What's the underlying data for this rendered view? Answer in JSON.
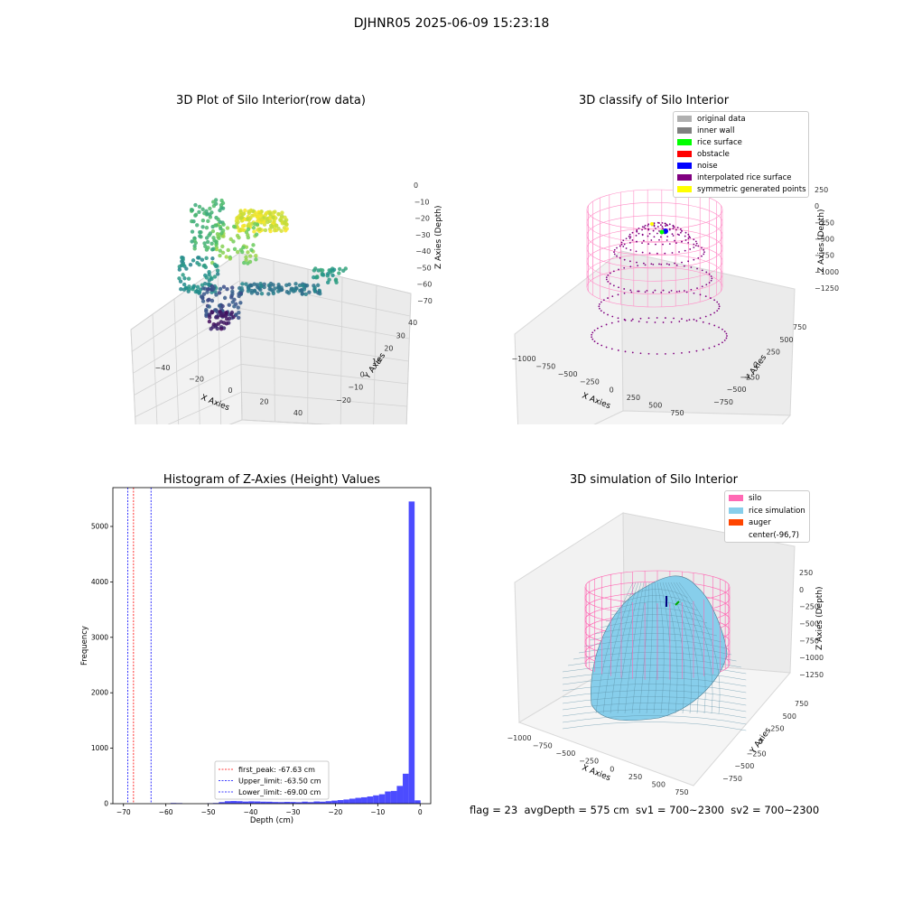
{
  "suptitle": "DJHNR05 2025-06-09 15:23:18",
  "footer_text": "flag = 23  avgDepth = 575 cm  sv1 = 700~2300  sv2 = 700~2300",
  "panels": {
    "raw": {
      "title": "3D Plot of Silo Interior(row data)",
      "xlabel": "X Axies",
      "ylabel": "Y Axies",
      "zlabel": "Z Axies (Depth)",
      "xticks": [
        "−40",
        "−20",
        "0",
        "20",
        "40"
      ],
      "yticks": [
        "−20",
        "−10",
        "0",
        "10",
        "20",
        "30",
        "40"
      ],
      "zticks": [
        "0",
        "−10",
        "−20",
        "−30",
        "−40",
        "−50",
        "−60",
        "−70"
      ]
    },
    "classify": {
      "title": "3D classify of Silo Interior",
      "xlabel": "X Axies",
      "ylabel": "Y Axies",
      "zlabel": "Z Axies (Depth)",
      "xticks": [
        "−1000",
        "−750",
        "−500",
        "−250",
        "0",
        "250",
        "500",
        "750"
      ],
      "yticks": [
        "−750",
        "−500",
        "−250",
        "0",
        "250",
        "500",
        "750"
      ],
      "zticks": [
        "250",
        "0",
        "−250",
        "−500",
        "−750",
        "−1000",
        "−1250"
      ],
      "legend": [
        {
          "label": "original data",
          "color": "#b0b0b0"
        },
        {
          "label": "inner wall",
          "color": "#808080"
        },
        {
          "label": "rice surface",
          "color": "#00ff00"
        },
        {
          "label": "obstacle",
          "color": "#ff0000"
        },
        {
          "label": "noise",
          "color": "#0000ff"
        },
        {
          "label": "interpolated rice surface",
          "color": "#800080"
        },
        {
          "label": "symmetric generated points",
          "color": "#ffff00"
        }
      ]
    },
    "simulation": {
      "title": "3D simulation of Silo Interior",
      "xlabel": "X Axies",
      "ylabel": "Y Axies",
      "zlabel": "Z Axies (Depth)",
      "xticks": [
        "−1000",
        "−750",
        "−500",
        "−250",
        "0",
        "250",
        "500",
        "750"
      ],
      "yticks": [
        "−750",
        "−500",
        "−250",
        "0",
        "250",
        "500",
        "750"
      ],
      "zticks": [
        "250",
        "0",
        "−250",
        "−500",
        "−750",
        "−1000",
        "−1250"
      ],
      "legend": [
        {
          "label": "silo",
          "color": "#ff69b4"
        },
        {
          "label": "rice simulation",
          "color": "#87ceeb"
        },
        {
          "label": "auger",
          "color": "#ff4500"
        },
        {
          "label": "center(-96,7)",
          "color": "#ffffff"
        }
      ]
    }
  },
  "chart_data": [
    {
      "type": "scatter",
      "title": "3D Plot of Silo Interior(row data)",
      "note_points": "3D point cloud; depth values roughly between -70 and -10",
      "zlim": [
        -72,
        5
      ]
    },
    {
      "type": "scatter",
      "title": "3D classify of Silo Interior"
    },
    {
      "type": "bar",
      "title": "Histogram of Z-Axies (Height) Values",
      "xlabel": "Depth (cm)",
      "ylabel": "Frequency",
      "xlim": [
        -72.5,
        2.5
      ],
      "ylim": [
        0,
        5700
      ],
      "xticks": [
        -70,
        -60,
        -50,
        -40,
        -30,
        -20,
        -10,
        0
      ],
      "yticks": [
        0,
        1000,
        2000,
        3000,
        4000,
        5000
      ],
      "bins": [
        {
          "x0": -58.9,
          "x1": -57.5,
          "count": 12
        },
        {
          "x0": -57.5,
          "x1": -56.1,
          "count": 10
        },
        {
          "x0": -50.3,
          "x1": -48.9,
          "count": 8
        },
        {
          "x0": -48.9,
          "x1": -47.5,
          "count": 12
        },
        {
          "x0": -47.5,
          "x1": -46.1,
          "count": 28
        },
        {
          "x0": -46.1,
          "x1": -44.7,
          "count": 45
        },
        {
          "x0": -44.7,
          "x1": -43.3,
          "count": 48
        },
        {
          "x0": -43.3,
          "x1": -41.9,
          "count": 45
        },
        {
          "x0": -41.9,
          "x1": -40.5,
          "count": 38
        },
        {
          "x0": -40.5,
          "x1": -39.1,
          "count": 42
        },
        {
          "x0": -39.1,
          "x1": -37.7,
          "count": 40
        },
        {
          "x0": -37.7,
          "x1": -36.3,
          "count": 36
        },
        {
          "x0": -36.3,
          "x1": -34.9,
          "count": 35
        },
        {
          "x0": -34.9,
          "x1": -33.5,
          "count": 30
        },
        {
          "x0": -33.5,
          "x1": -32.1,
          "count": 28
        },
        {
          "x0": -32.1,
          "x1": -30.7,
          "count": 32
        },
        {
          "x0": -30.7,
          "x1": -29.3,
          "count": 30
        },
        {
          "x0": -29.3,
          "x1": -27.9,
          "count": 26
        },
        {
          "x0": -27.9,
          "x1": -26.5,
          "count": 36
        },
        {
          "x0": -26.5,
          "x1": -25.1,
          "count": 28
        },
        {
          "x0": -25.1,
          "x1": -23.7,
          "count": 40
        },
        {
          "x0": -23.7,
          "x1": -22.3,
          "count": 36
        },
        {
          "x0": -22.3,
          "x1": -20.9,
          "count": 45
        },
        {
          "x0": -20.9,
          "x1": -19.5,
          "count": 55
        },
        {
          "x0": -19.5,
          "x1": -18.1,
          "count": 65
        },
        {
          "x0": -18.1,
          "x1": -16.7,
          "count": 75
        },
        {
          "x0": -16.7,
          "x1": -15.3,
          "count": 90
        },
        {
          "x0": -15.3,
          "x1": -13.9,
          "count": 105
        },
        {
          "x0": -13.9,
          "x1": -12.5,
          "count": 115
        },
        {
          "x0": -12.5,
          "x1": -11.1,
          "count": 130
        },
        {
          "x0": -11.1,
          "x1": -9.7,
          "count": 150
        },
        {
          "x0": -9.7,
          "x1": -8.3,
          "count": 170
        },
        {
          "x0": -8.3,
          "x1": -6.9,
          "count": 220
        },
        {
          "x0": -6.9,
          "x1": -5.5,
          "count": 230
        },
        {
          "x0": -5.5,
          "x1": -4.1,
          "count": 320
        },
        {
          "x0": -4.1,
          "x1": -2.7,
          "count": 540
        },
        {
          "x0": -2.7,
          "x1": -1.3,
          "count": 5450
        },
        {
          "x0": -1.3,
          "x1": 0.1,
          "count": 60
        }
      ],
      "vlines": [
        {
          "name": "first_peak: -67.63 cm",
          "x": -67.63,
          "color": "#ff0000"
        },
        {
          "name": "Upper_limit: -63.50 cm",
          "x": -63.5,
          "color": "#0000ff"
        },
        {
          "name": "Lower_limit: -69.00 cm",
          "x": -69.0,
          "color": "#0000ff"
        }
      ],
      "bar_color": "#4c4cff"
    },
    {
      "type": "scatter",
      "title": "3D simulation of Silo Interior"
    }
  ]
}
